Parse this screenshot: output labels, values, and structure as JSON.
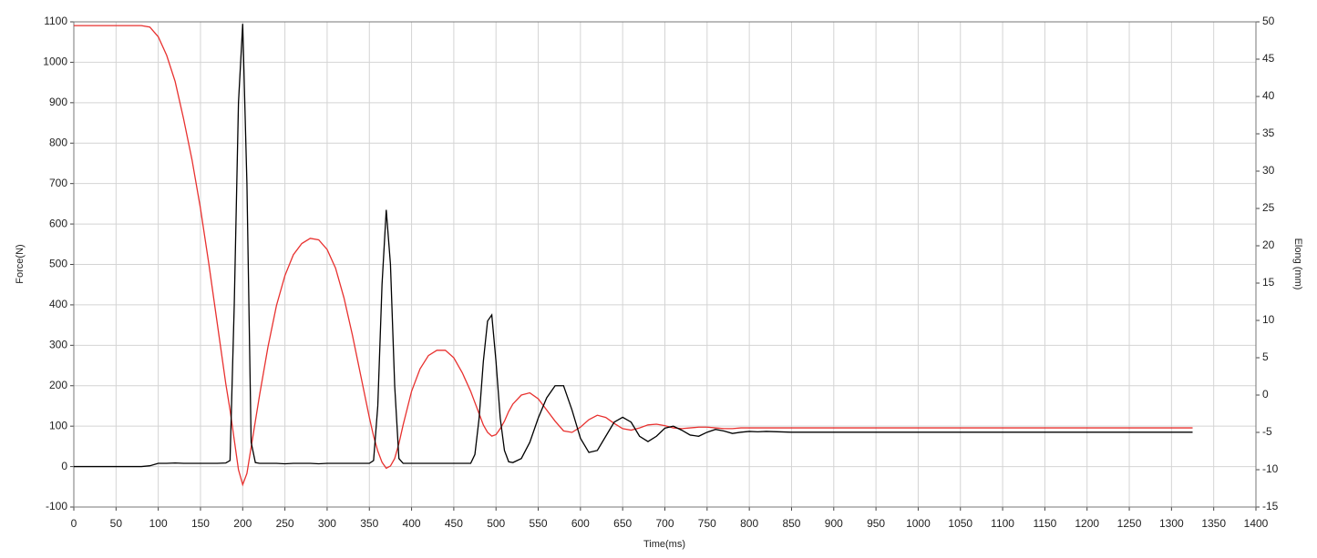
{
  "chart_data": {
    "type": "line",
    "x_label": "Time(ms)",
    "y_label": "Force(N)",
    "y2_label": "Elong (mm)",
    "x": [
      0,
      10,
      20,
      30,
      40,
      50,
      60,
      70,
      80,
      90,
      100,
      110,
      120,
      130,
      140,
      150,
      160,
      170,
      180,
      185,
      190,
      195,
      200,
      205,
      210,
      215,
      220,
      230,
      240,
      250,
      260,
      270,
      280,
      290,
      300,
      310,
      320,
      330,
      340,
      350,
      355,
      360,
      365,
      370,
      375,
      380,
      385,
      390,
      400,
      410,
      420,
      430,
      440,
      450,
      460,
      470,
      475,
      480,
      485,
      490,
      495,
      500,
      505,
      510,
      515,
      520,
      530,
      540,
      550,
      560,
      570,
      580,
      590,
      600,
      610,
      620,
      630,
      640,
      650,
      660,
      670,
      680,
      690,
      700,
      710,
      720,
      730,
      740,
      750,
      760,
      770,
      780,
      790,
      800,
      810,
      820,
      850,
      900,
      950,
      1000,
      1050,
      1100,
      1150,
      1200,
      1250,
      1300,
      1325
    ],
    "series": [
      {
        "color": "#000000",
        "axis": "y",
        "values": [
          0,
          0,
          0,
          0,
          0,
          0,
          0,
          0,
          0,
          2,
          8,
          8,
          9,
          8,
          8,
          8,
          8,
          8,
          9,
          15,
          400,
          900,
          1095,
          700,
          60,
          10,
          8,
          8,
          8,
          7,
          8,
          8,
          8,
          7,
          8,
          8,
          8,
          8,
          8,
          8,
          15,
          150,
          450,
          635,
          500,
          200,
          20,
          8,
          8,
          8,
          8,
          8,
          8,
          8,
          8,
          8,
          30,
          120,
          260,
          360,
          375,
          260,
          120,
          40,
          12,
          10,
          20,
          60,
          120,
          170,
          200,
          200,
          140,
          70,
          35,
          40,
          75,
          110,
          122,
          110,
          75,
          62,
          75,
          95,
          100,
          90,
          78,
          75,
          85,
          92,
          88,
          82,
          85,
          87,
          86,
          87,
          85,
          85,
          85,
          85,
          85,
          85,
          85,
          85,
          85,
          85,
          85
        ]
      },
      {
        "color": "#e8312f",
        "axis": "y2",
        "values": [
          49.5,
          49.5,
          49.5,
          49.5,
          49.5,
          49.5,
          49.5,
          49.5,
          49.5,
          49.3,
          48,
          45.5,
          42,
          37,
          31.5,
          25,
          17.5,
          9.5,
          1.5,
          -2,
          -6,
          -10,
          -12,
          -10.5,
          -7,
          -3.5,
          0,
          6.5,
          12,
          16,
          18.8,
          20.3,
          21,
          20.8,
          19.5,
          17,
          13,
          8,
          2.5,
          -3,
          -5.5,
          -7.5,
          -9,
          -9.8,
          -9.5,
          -8.5,
          -6.5,
          -4,
          0.5,
          3.5,
          5.3,
          6,
          6,
          5,
          3,
          0.5,
          -1,
          -2.5,
          -4,
          -5,
          -5.5,
          -5.3,
          -4.5,
          -3.5,
          -2.2,
          -1.2,
          0,
          0.3,
          -0.5,
          -2,
          -3.5,
          -4.8,
          -5,
          -4.3,
          -3.3,
          -2.7,
          -3,
          -3.8,
          -4.5,
          -4.7,
          -4.4,
          -4,
          -3.9,
          -4.1,
          -4.4,
          -4.5,
          -4.4,
          -4.3,
          -4.3,
          -4.4,
          -4.5,
          -4.5,
          -4.4,
          -4.4,
          -4.4,
          -4.4,
          -4.4,
          -4.4,
          -4.4,
          -4.4,
          -4.4,
          -4.4,
          -4.4,
          -4.4,
          -4.4,
          -4.4,
          -4.4
        ]
      }
    ],
    "xlim": [
      0,
      1400
    ],
    "xticks": [
      0,
      50,
      100,
      150,
      200,
      250,
      300,
      350,
      400,
      450,
      500,
      550,
      600,
      650,
      700,
      750,
      800,
      850,
      900,
      950,
      1000,
      1050,
      1100,
      1150,
      1200,
      1250,
      1300,
      1350,
      1400
    ],
    "ylim": [
      -100,
      1100
    ],
    "yticks": [
      -100,
      0,
      100,
      200,
      300,
      400,
      500,
      600,
      700,
      800,
      900,
      1000,
      1100
    ],
    "y2lim": [
      -15,
      50
    ],
    "y2ticks": [
      -15,
      -10,
      -5,
      0,
      5,
      10,
      15,
      20,
      25,
      30,
      35,
      40,
      45,
      50
    ],
    "grid": true
  }
}
